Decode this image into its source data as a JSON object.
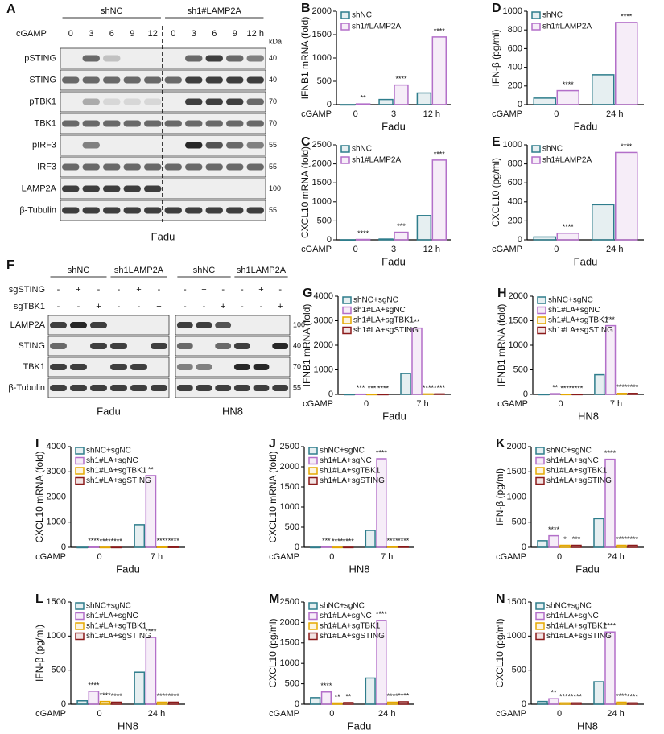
{
  "blots": [
    {
      "panel": "A",
      "groups": [
        "shNC",
        "sh1#LAMP2A"
      ],
      "treatments": [
        {
          "label": "cGAMP",
          "lanes": [
            "0",
            "3",
            "6",
            "9",
            "12",
            "0",
            "3",
            "6",
            "9",
            "12 h"
          ]
        }
      ],
      "kda_unit": "kDa",
      "rows": [
        {
          "label": "pSTING",
          "kda": 40
        },
        {
          "label": "STING",
          "kda": 40
        },
        {
          "label": "pTBK1",
          "kda": 70
        },
        {
          "label": "TBK1",
          "kda": 70
        },
        {
          "label": "pIRF3",
          "kda": 55
        },
        {
          "label": "IRF3",
          "kda": 55
        },
        {
          "label": "LAMP2A",
          "kda": 100
        },
        {
          "label": "β-Tubulin",
          "kda": 55
        }
      ],
      "cell_lines": [
        "Fadu"
      ]
    },
    {
      "panel": "F",
      "groups": [
        "shNC",
        "sh1LAMP2A",
        "shNC",
        "sh1LAMP2A"
      ],
      "treatments": [
        {
          "label": "sgSTING",
          "lanes": [
            "-",
            "+",
            "-",
            "-",
            "+",
            "-",
            "-",
            "+",
            "-",
            "-",
            "+",
            "-"
          ]
        },
        {
          "label": "sgTBK1",
          "lanes": [
            "-",
            "-",
            "+",
            "-",
            "-",
            "+",
            "-",
            "-",
            "+",
            "-",
            "-",
            "+"
          ]
        }
      ],
      "rows": [
        {
          "label": "LAMP2A",
          "kda": 100
        },
        {
          "label": "STING",
          "kda": 40
        },
        {
          "label": "TBK1",
          "kda": 70
        },
        {
          "label": "β-Tubulin",
          "kda": 55
        }
      ],
      "cell_lines": [
        "Fadu",
        "HN8"
      ]
    }
  ],
  "chart_data": [
    {
      "type": "bar",
      "panel": "B",
      "ylabel": "IFNB1 mRNA (fold)",
      "xlabel": "Fadu",
      "x_prefix": "cGAMP",
      "categories": [
        "0",
        "3",
        "12 h"
      ],
      "ylim": [
        0,
        2000
      ],
      "yticks": [
        0,
        500,
        1000,
        1500,
        2000
      ],
      "series": [
        {
          "name": "shNC",
          "color": "#2e7d8c",
          "values": [
            1,
            110,
            250
          ],
          "significance": [
            null,
            null,
            null
          ]
        },
        {
          "name": "sh1#LAMP2A",
          "color": "#b36fc9",
          "values": [
            15,
            420,
            1450
          ],
          "significance": [
            "**",
            "****",
            "****"
          ]
        }
      ]
    },
    {
      "type": "bar",
      "panel": "C",
      "ylabel": "CXCL10 mRNA (fold)",
      "xlabel": "Fadu",
      "x_prefix": "cGAMP",
      "categories": [
        "0",
        "3",
        "12 h"
      ],
      "ylim": [
        0,
        2500
      ],
      "yticks": [
        0,
        500,
        1000,
        1500,
        2000,
        2500
      ],
      "series": [
        {
          "name": "shNC",
          "color": "#2e7d8c",
          "values": [
            1,
            20,
            640
          ],
          "significance": [
            null,
            null,
            null
          ]
        },
        {
          "name": "sh1#LAMP2A",
          "color": "#b36fc9",
          "values": [
            10,
            200,
            2100
          ],
          "significance": [
            "****",
            "***",
            "****"
          ]
        }
      ]
    },
    {
      "type": "bar",
      "panel": "D",
      "ylabel": "IFN-β (pg/ml)",
      "xlabel": "Fadu",
      "x_prefix": "cGAMP",
      "categories": [
        "0",
        "24 h"
      ],
      "ylim": [
        0,
        1000
      ],
      "yticks": [
        0,
        200,
        400,
        600,
        800,
        1000
      ],
      "series": [
        {
          "name": "shNC",
          "color": "#2e7d8c",
          "values": [
            70,
            320
          ],
          "significance": [
            null,
            null
          ]
        },
        {
          "name": "sh1#LAMP2A",
          "color": "#b36fc9",
          "values": [
            150,
            880
          ],
          "significance": [
            "****",
            "****"
          ]
        }
      ]
    },
    {
      "type": "bar",
      "panel": "E",
      "ylabel": "CXCL10 (pg/ml)",
      "xlabel": "Fadu",
      "x_prefix": "cGAMP",
      "categories": [
        "0",
        "24 h"
      ],
      "ylim": [
        0,
        1000
      ],
      "yticks": [
        0,
        200,
        400,
        600,
        800,
        1000
      ],
      "series": [
        {
          "name": "shNC",
          "color": "#2e7d8c",
          "values": [
            30,
            370
          ],
          "significance": [
            null,
            null
          ]
        },
        {
          "name": "sh1#LAMP2A",
          "color": "#b36fc9",
          "values": [
            70,
            920
          ],
          "significance": [
            "****",
            "****"
          ]
        }
      ]
    },
    {
      "type": "bar",
      "panel": "G",
      "ylabel": "IFNB1 mRNA (fold)",
      "xlabel": "Fadu",
      "x_prefix": "cGAMP",
      "categories": [
        "0",
        "7 h"
      ],
      "ylim": [
        0,
        4000
      ],
      "yticks": [
        0,
        1000,
        2000,
        3000,
        4000
      ],
      "series": [
        {
          "name": "shNC+sgNC",
          "color": "#2e7d8c",
          "values": [
            1,
            850
          ],
          "significance": [
            null,
            null
          ]
        },
        {
          "name": "sh1#LA+sgNC",
          "color": "#b36fc9",
          "values": [
            10,
            2700
          ],
          "significance": [
            "***",
            "**"
          ]
        },
        {
          "name": "sh1#LA+sgTBK1",
          "color": "#e5a800",
          "values": [
            2,
            20
          ],
          "significance": [
            "***",
            "****"
          ]
        },
        {
          "name": "sh1#LA+sgSTING",
          "color": "#8b1a1a",
          "values": [
            2,
            20
          ],
          "significance": [
            "****",
            "****"
          ]
        }
      ]
    },
    {
      "type": "bar",
      "panel": "H",
      "ylabel": "IFNB1 mRNA (fold)",
      "xlabel": "HN8",
      "x_prefix": "cGAMP",
      "categories": [
        "0",
        "7 h"
      ],
      "ylim": [
        0,
        2000
      ],
      "yticks": [
        0,
        500,
        1000,
        1500,
        2000
      ],
      "series": [
        {
          "name": "shNC+sgNC",
          "color": "#2e7d8c",
          "values": [
            1,
            400
          ],
          "significance": [
            null,
            null
          ]
        },
        {
          "name": "sh1#LA+sgNC",
          "color": "#b36fc9",
          "values": [
            15,
            1400
          ],
          "significance": [
            "**",
            "***"
          ]
        },
        {
          "name": "sh1#LA+sgTBK1",
          "color": "#e5a800",
          "values": [
            2,
            20
          ],
          "significance": [
            "****",
            "****"
          ]
        },
        {
          "name": "sh1#LA+sgSTING",
          "color": "#8b1a1a",
          "values": [
            2,
            20
          ],
          "significance": [
            "****",
            "****"
          ]
        }
      ]
    },
    {
      "type": "bar",
      "panel": "I",
      "ylabel": "CXCL10 mRNA (fold)",
      "xlabel": "Fadu",
      "x_prefix": "cGAMP",
      "categories": [
        "0",
        "7 h"
      ],
      "ylim": [
        0,
        4000
      ],
      "yticks": [
        0,
        1000,
        2000,
        3000,
        4000
      ],
      "series": [
        {
          "name": "shNC+sgNC",
          "color": "#2e7d8c",
          "values": [
            1,
            900
          ],
          "significance": [
            null,
            null
          ]
        },
        {
          "name": "sh1#LA+sgNC",
          "color": "#b36fc9",
          "values": [
            10,
            2850
          ],
          "significance": [
            "****",
            "**"
          ]
        },
        {
          "name": "sh1#LA+sgTBK1",
          "color": "#e5a800",
          "values": [
            2,
            10
          ],
          "significance": [
            "****",
            "****"
          ]
        },
        {
          "name": "sh1#LA+sgSTING",
          "color": "#8b1a1a",
          "values": [
            2,
            10
          ],
          "significance": [
            "****",
            "****"
          ]
        }
      ]
    },
    {
      "type": "bar",
      "panel": "J",
      "ylabel": "CXCL10 mRNA (fold)",
      "xlabel": "HN8",
      "x_prefix": "cGAMP",
      "categories": [
        "0",
        "7 h"
      ],
      "ylim": [
        0,
        2500
      ],
      "yticks": [
        0,
        500,
        1000,
        1500,
        2000,
        2500
      ],
      "series": [
        {
          "name": "shNC+sgNC",
          "color": "#2e7d8c",
          "values": [
            1,
            420
          ],
          "significance": [
            null,
            null
          ]
        },
        {
          "name": "sh1#LA+sgNC",
          "color": "#b36fc9",
          "values": [
            10,
            2200
          ],
          "significance": [
            "***",
            "****"
          ]
        },
        {
          "name": "sh1#LA+sgTBK1",
          "color": "#e5a800",
          "values": [
            2,
            10
          ],
          "significance": [
            "****",
            "****"
          ]
        },
        {
          "name": "sh1#LA+sgSTING",
          "color": "#8b1a1a",
          "values": [
            2,
            10
          ],
          "significance": [
            "****",
            "****"
          ]
        }
      ]
    },
    {
      "type": "bar",
      "panel": "K",
      "ylabel": "IFN-β (pg/ml)",
      "xlabel": "Fadu",
      "x_prefix": "cGAMP",
      "categories": [
        "0",
        "24 h"
      ],
      "ylim": [
        0,
        2000
      ],
      "yticks": [
        0,
        500,
        1000,
        1500,
        2000
      ],
      "series": [
        {
          "name": "shNC+sgNC",
          "color": "#2e7d8c",
          "values": [
            130,
            570
          ],
          "significance": [
            null,
            null
          ]
        },
        {
          "name": "sh1#LA+sgNC",
          "color": "#b36fc9",
          "values": [
            230,
            1750
          ],
          "significance": [
            "****",
            "****"
          ]
        },
        {
          "name": "sh1#LA+sgTBK1",
          "color": "#e5a800",
          "values": [
            40,
            40
          ],
          "significance": [
            "*",
            "****"
          ]
        },
        {
          "name": "sh1#LA+sgSTING",
          "color": "#8b1a1a",
          "values": [
            40,
            40
          ],
          "significance": [
            "***",
            "****"
          ]
        }
      ]
    },
    {
      "type": "bar",
      "panel": "L",
      "ylabel": "IFN-β (pg/ml)",
      "xlabel": "HN8",
      "x_prefix": "cGAMP",
      "categories": [
        "0",
        "24 h"
      ],
      "ylim": [
        0,
        1500
      ],
      "yticks": [
        0,
        500,
        1000,
        1500
      ],
      "series": [
        {
          "name": "shNC+sgNC",
          "color": "#2e7d8c",
          "values": [
            50,
            470
          ],
          "significance": [
            null,
            null
          ]
        },
        {
          "name": "sh1#LA+sgNC",
          "color": "#b36fc9",
          "values": [
            190,
            980
          ],
          "significance": [
            "****",
            "****"
          ]
        },
        {
          "name": "sh1#LA+sgTBK1",
          "color": "#e5a800",
          "values": [
            40,
            30
          ],
          "significance": [
            "****",
            "****"
          ]
        },
        {
          "name": "sh1#LA+sgSTING",
          "color": "#8b1a1a",
          "values": [
            30,
            30
          ],
          "significance": [
            "****",
            "****"
          ]
        }
      ]
    },
    {
      "type": "bar",
      "panel": "M",
      "ylabel": "CXCL10 (pg/ml)",
      "xlabel": "Fadu",
      "x_prefix": "cGAMP",
      "categories": [
        "0",
        "24 h"
      ],
      "ylim": [
        0,
        2500
      ],
      "yticks": [
        0,
        500,
        1000,
        1500,
        2000,
        2500
      ],
      "series": [
        {
          "name": "shNC+sgNC",
          "color": "#2e7d8c",
          "values": [
            160,
            640
          ],
          "significance": [
            null,
            null
          ]
        },
        {
          "name": "sh1#LA+sgNC",
          "color": "#b36fc9",
          "values": [
            300,
            2050
          ],
          "significance": [
            "****",
            "****"
          ]
        },
        {
          "name": "sh1#LA+sgTBK1",
          "color": "#e5a800",
          "values": [
            30,
            50
          ],
          "significance": [
            "**",
            "****"
          ]
        },
        {
          "name": "sh1#LA+sgSTING",
          "color": "#8b1a1a",
          "values": [
            40,
            60
          ],
          "significance": [
            "**",
            "****"
          ]
        }
      ]
    },
    {
      "type": "bar",
      "panel": "N",
      "ylabel": "CXCL10 (pg/ml)",
      "xlabel": "HN8",
      "x_prefix": "cGAMP",
      "categories": [
        "0",
        "24 h"
      ],
      "ylim": [
        0,
        1500
      ],
      "yticks": [
        0,
        500,
        1000,
        1500
      ],
      "series": [
        {
          "name": "shNC+sgNC",
          "color": "#2e7d8c",
          "values": [
            40,
            330
          ],
          "significance": [
            null,
            null
          ]
        },
        {
          "name": "sh1#LA+sgNC",
          "color": "#b36fc9",
          "values": [
            80,
            1060
          ],
          "significance": [
            "**",
            "****"
          ]
        },
        {
          "name": "sh1#LA+sgTBK1",
          "color": "#e5a800",
          "values": [
            20,
            30
          ],
          "significance": [
            "****",
            "****"
          ]
        },
        {
          "name": "sh1#LA+sgSTING",
          "color": "#8b1a1a",
          "values": [
            20,
            20
          ],
          "significance": [
            "****",
            "****"
          ]
        }
      ]
    }
  ]
}
